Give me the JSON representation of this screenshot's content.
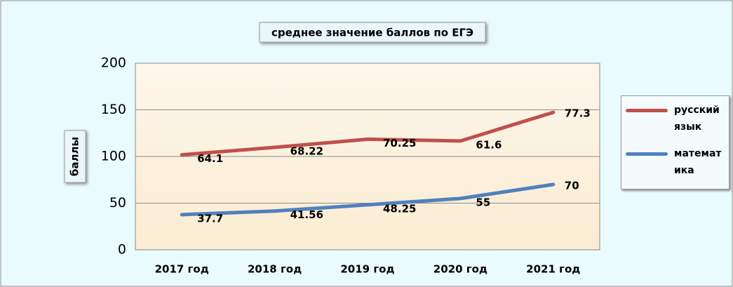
{
  "chart_data": {
    "type": "line",
    "stacked": true,
    "title": "среднее значение баллов по ЕГЭ",
    "y_label": "баллы",
    "categories": [
      "2017 год",
      "2018 год",
      "2019 год",
      "2020 год",
      "2021 год"
    ],
    "series": [
      {
        "name": "русский язык",
        "color": "#c0504d",
        "values": [
          64.1,
          68.22,
          70.25,
          61.6,
          77.3
        ]
      },
      {
        "name": "математика",
        "color": "#4f81bd",
        "values": [
          37.7,
          41.56,
          48.25,
          55,
          70
        ]
      }
    ],
    "stack_order": [
      1,
      0
    ],
    "ylim": [
      0,
      200
    ],
    "yticks": [
      0,
      50,
      100,
      150,
      200
    ],
    "grid": true
  }
}
